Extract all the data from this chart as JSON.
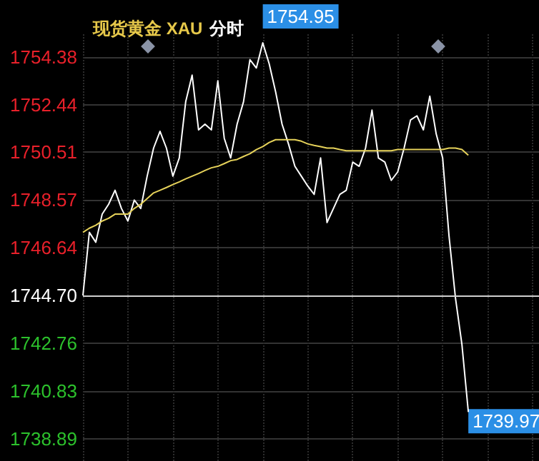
{
  "chart_data": {
    "type": "line",
    "title": "现货黄金 XAU 分时",
    "categories": [
      null,
      null,
      null,
      null,
      null,
      null,
      null,
      null,
      null,
      null,
      null,
      null,
      null,
      null,
      null,
      null,
      null,
      null,
      null,
      null,
      null,
      null,
      null,
      null,
      null,
      null,
      null,
      null,
      null,
      null,
      null,
      null,
      null,
      null,
      null,
      null,
      null,
      null,
      null,
      null,
      null,
      null,
      null,
      null,
      null,
      null,
      null,
      null,
      null,
      null,
      null,
      null,
      null,
      null,
      null,
      null,
      null,
      null,
      null,
      null,
      null,
      null,
      null,
      null,
      null,
      null,
      null,
      null,
      null,
      null,
      null,
      null
    ],
    "series": [
      {
        "color": "#ffffff",
        "values": [
          1744.7,
          1747.26,
          1746.86,
          1748.0,
          1748.4,
          1748.97,
          1748.23,
          1747.72,
          1748.57,
          1748.23,
          1749.54,
          1750.68,
          1751.36,
          1750.68,
          1749.54,
          1750.28,
          1752.56,
          1753.64,
          1751.42,
          1751.65,
          1751.42,
          1753.41,
          1751.08,
          1750.28,
          1751.65,
          1752.56,
          1754.27,
          1753.93,
          1754.95,
          1754.1,
          1752.96,
          1751.65,
          1750.85,
          1749.94,
          1749.54,
          1749.14,
          1748.8,
          1750.28,
          1747.66,
          1748.23,
          1748.8,
          1748.97,
          1750.11,
          1749.94,
          1750.68,
          1752.22,
          1750.28,
          1750.11,
          1749.37,
          1749.71,
          1750.68,
          1751.82,
          1751.99,
          1751.42,
          1752.79,
          1751.25,
          1750.28,
          1747.09,
          1744.59,
          1742.71,
          1739.97,
          null,
          null,
          null,
          null,
          null,
          null,
          null,
          null,
          null,
          null,
          null
        ]
      },
      {
        "color": "#e6d25a",
        "values": [
          1747.26,
          1747.43,
          1747.55,
          1747.72,
          1747.83,
          1748.0,
          1748.0,
          1748.0,
          1748.23,
          1748.4,
          1748.63,
          1748.86,
          1748.97,
          1749.08,
          1749.2,
          1749.31,
          1749.43,
          1749.54,
          1749.65,
          1749.77,
          1749.88,
          1749.94,
          1750.05,
          1750.17,
          1750.22,
          1750.34,
          1750.45,
          1750.62,
          1750.74,
          1750.91,
          1751.02,
          1751.02,
          1751.02,
          1751.02,
          1750.96,
          1750.85,
          1750.79,
          1750.74,
          1750.68,
          1750.68,
          1750.62,
          1750.57,
          1750.57,
          1750.57,
          1750.57,
          1750.57,
          1750.57,
          1750.57,
          1750.57,
          1750.62,
          1750.62,
          1750.62,
          1750.62,
          1750.62,
          1750.62,
          1750.62,
          1750.62,
          1750.68,
          1750.68,
          1750.62,
          1750.39,
          null,
          null,
          null,
          null,
          null,
          null,
          null,
          null,
          null,
          null,
          null
        ]
      }
    ],
    "ylim": [
      1737.98,
      1755.3
    ],
    "yticks": [
      {
        "value": 1738.89,
        "label": "1738.89"
      },
      {
        "value": 1740.83,
        "label": "1740.83"
      },
      {
        "value": 1742.76,
        "label": "1742.76"
      },
      {
        "value": 1744.7,
        "label": "1744.70"
      },
      {
        "value": 1746.64,
        "label": "1746.64"
      },
      {
        "value": 1748.57,
        "label": "1748.57"
      },
      {
        "value": 1750.51,
        "label": "1750.51"
      },
      {
        "value": 1752.44,
        "label": "1752.44"
      },
      {
        "value": 1754.38,
        "label": "1754.38"
      }
    ],
    "ref_lines": [
      {
        "axis": "y",
        "value": 1744.7,
        "color": "#cfcfcf"
      }
    ],
    "annotations": [
      "1754.95",
      "1739.97"
    ],
    "grid": true,
    "tick_labels": "y",
    "line_style": "solid"
  }
}
